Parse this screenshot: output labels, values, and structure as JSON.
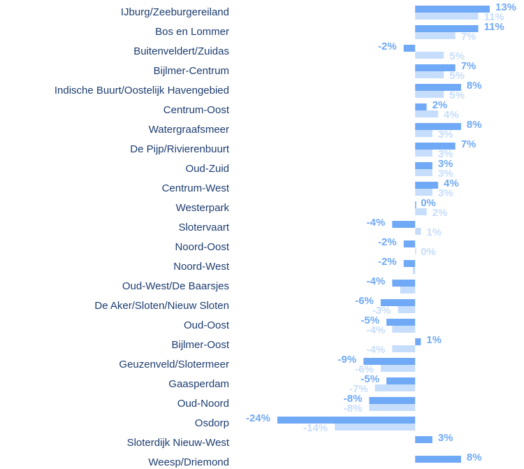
{
  "chart_data": {
    "type": "bar",
    "orientation": "horizontal",
    "categories": [
      "IJburg/Zeeburgereiland",
      "Bos en Lommer",
      "Buitenveldert/Zuidas",
      "Bijlmer-Centrum",
      "Indische Buurt/Oostelijk Havengebied",
      "Centrum-Oost",
      "Watergraafsmeer",
      "De Pijp/Rivierenbuurt",
      "Oud-Zuid",
      "Centrum-West",
      "Westerpark",
      "Slotervaart",
      "Noord-Oost",
      "Noord-West",
      "Oud-West/De Baarsjes",
      "De Aker/Sloten/Nieuw Sloten",
      "Oud-Oost",
      "Bijlmer-Oost",
      "Geuzenveld/Slotermeer",
      "Gaasperdam",
      "Oud-Noord",
      "Osdorp",
      "Sloterdijk Nieuw-West",
      "Weesp/Driemond"
    ],
    "series": [
      {
        "color": "#70a9f6",
        "values": [
          13,
          11,
          -2,
          7,
          8,
          2,
          8,
          7,
          3,
          4,
          0,
          -4,
          -2,
          -2,
          -4,
          -6,
          -5,
          1,
          -9,
          -5,
          -8,
          -24,
          3,
          8
        ],
        "value_labels": [
          "13%",
          "11%",
          "-2%",
          "7%",
          "8%",
          "2%",
          "8%",
          "7%",
          "3%",
          "4%",
          "0%",
          "-4%",
          "-2%",
          "-2%",
          "-4%",
          "-6%",
          "-5%",
          "1%",
          "-9%",
          "-5%",
          "-8%",
          "-24%",
          "3%",
          "8%"
        ]
      },
      {
        "color": "#c6ddfc",
        "values": [
          11,
          7,
          5,
          5,
          5,
          4,
          3,
          3,
          3,
          3,
          2,
          1,
          0,
          -0.4,
          -2.6,
          -3,
          -4,
          -4,
          -6,
          -7,
          -8,
          -14,
          null,
          null
        ],
        "value_labels": [
          "11%",
          "7%",
          "5%",
          "5%",
          "5%",
          "4%",
          "3%",
          "3%",
          "3%",
          "3%",
          "2%",
          "1%",
          "0%",
          null,
          null,
          "-3%",
          "-4%",
          "-4%",
          "-6%",
          "-7%",
          "-8%",
          "-14%",
          null,
          null
        ]
      }
    ],
    "xlim": [
      -24,
      13
    ]
  }
}
